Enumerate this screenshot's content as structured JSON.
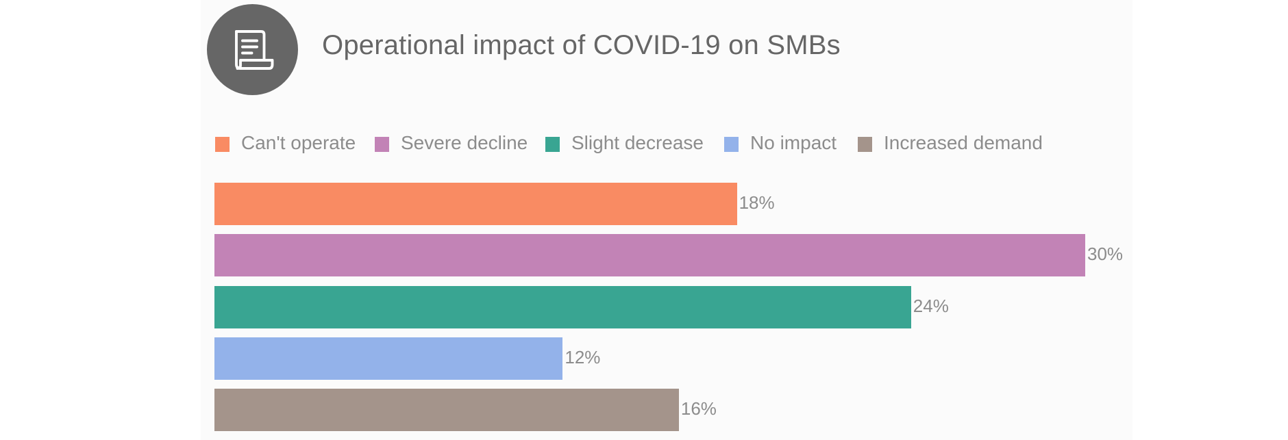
{
  "header": {
    "icon": "document-scroll-icon",
    "title": "Operational impact of COVID-19 on SMBs"
  },
  "chart_data": {
    "type": "bar",
    "orientation": "horizontal",
    "title": "Operational impact of COVID-19 on SMBs",
    "xlabel": "",
    "ylabel": "",
    "categories": [
      "Can't operate",
      "Severe decline",
      "Slight decrease",
      "No impact",
      "Increased demand"
    ],
    "values": [
      18,
      30,
      24,
      12,
      16
    ],
    "value_labels": [
      "18%",
      "30%",
      "24%",
      "12%",
      "16%"
    ],
    "unit": "%",
    "xlim": [
      0,
      30
    ],
    "grid": false,
    "axes_visible": false,
    "legend": {
      "placement": "top",
      "entries": [
        {
          "label": "Can't operate",
          "color": "#f98b63"
        },
        {
          "label": "Severe decline",
          "color": "#c283b6"
        },
        {
          "label": "Slight decrease",
          "color": "#39a592"
        },
        {
          "label": "No impact",
          "color": "#93b2ea"
        },
        {
          "label": "Increased demand",
          "color": "#a4948b"
        }
      ]
    },
    "colors": [
      "#f98b63",
      "#c283b6",
      "#39a592",
      "#93b2ea",
      "#a4948b"
    ]
  }
}
